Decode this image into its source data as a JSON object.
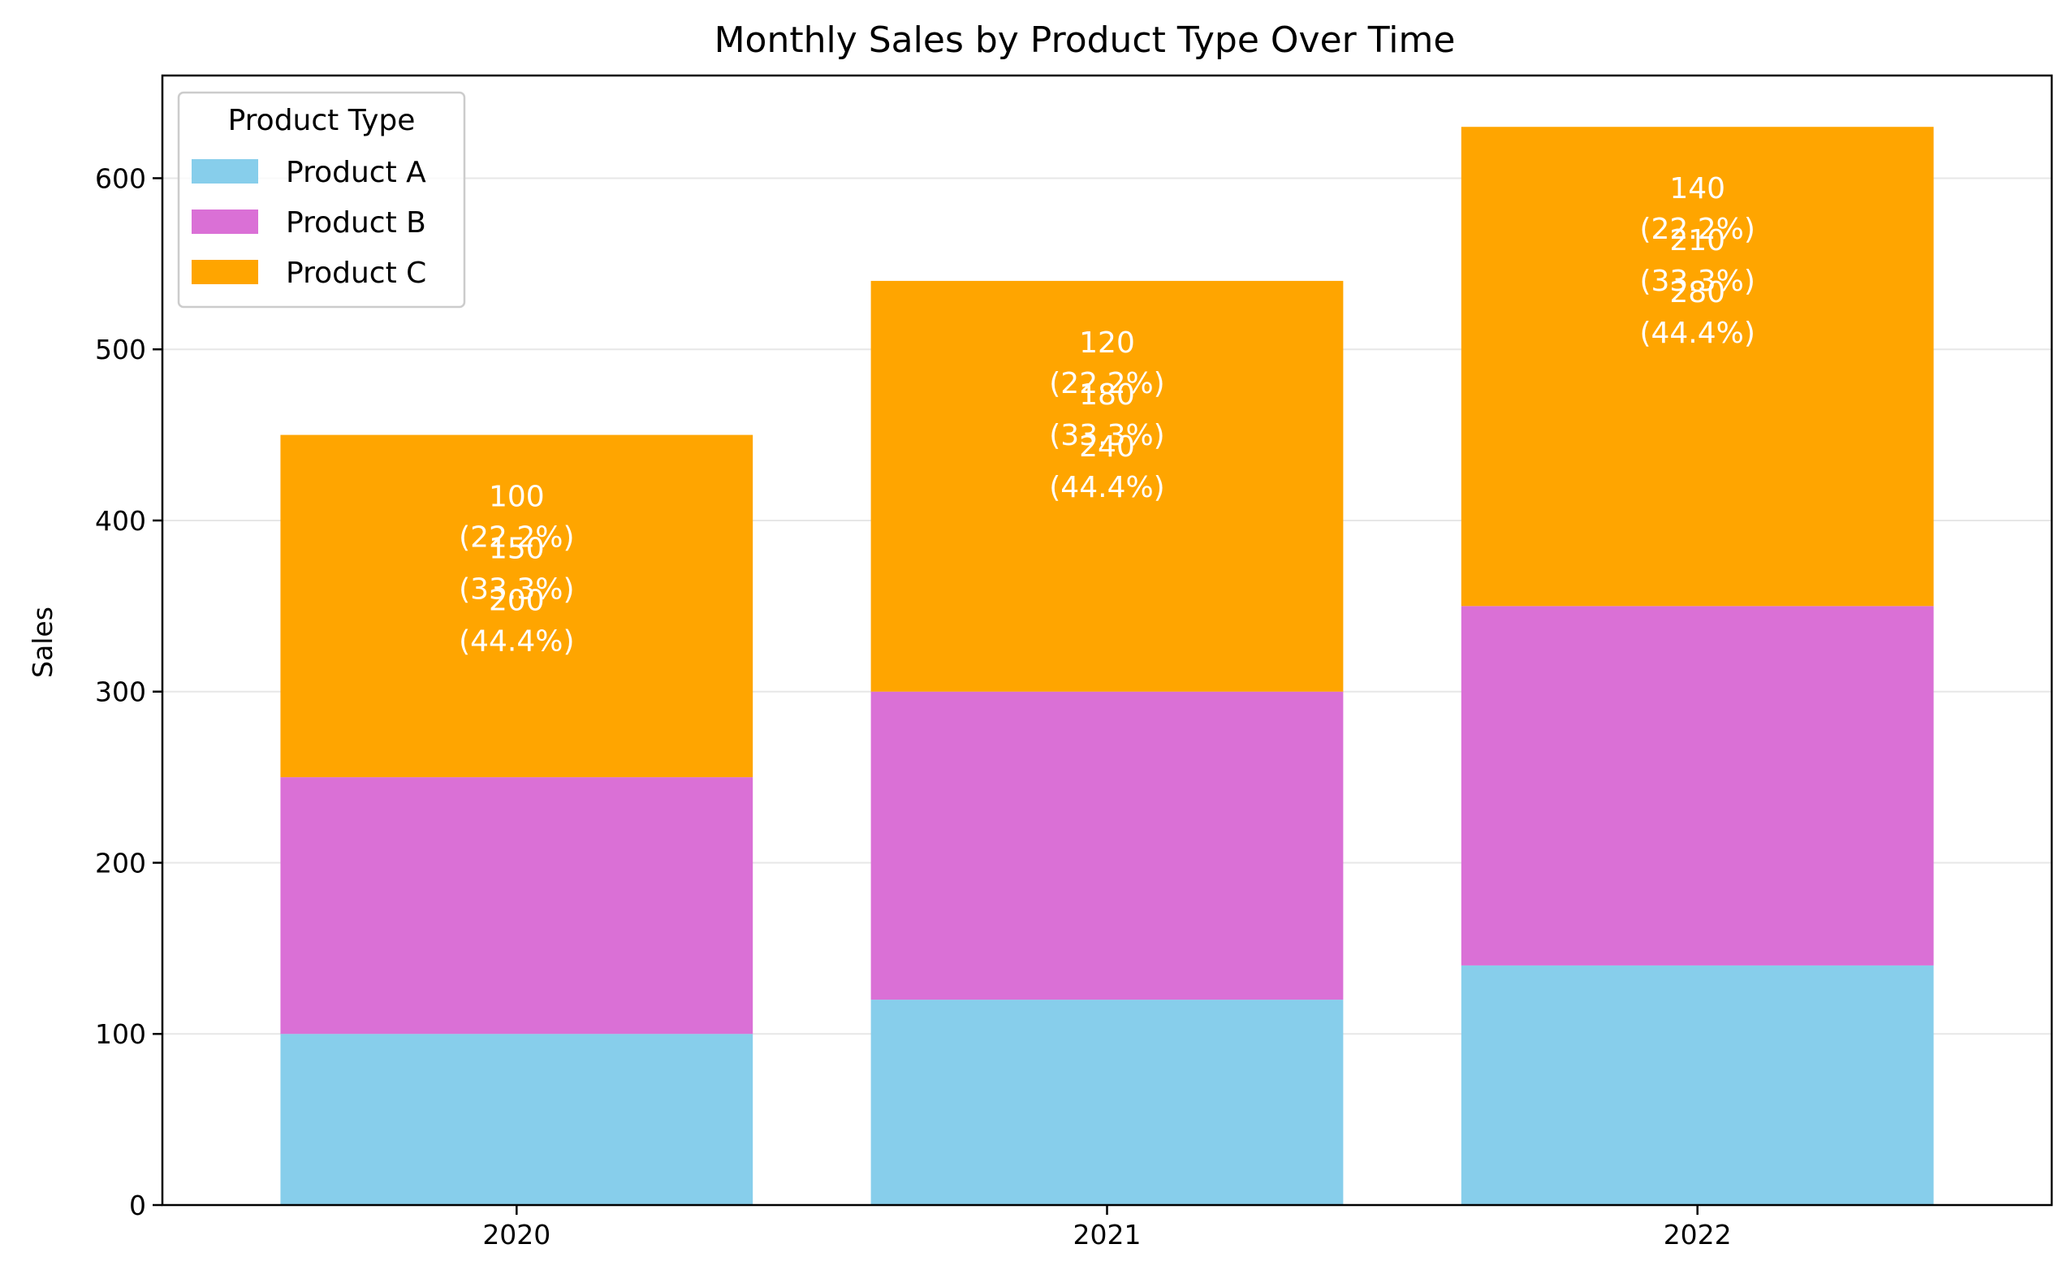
{
  "chart_data": {
    "type": "bar",
    "stacked": true,
    "title": "Monthly Sales by Product Type Over Time",
    "xlabel": "",
    "ylabel": "Sales",
    "categories": [
      "2020",
      "2021",
      "2022"
    ],
    "ylim": [
      0,
      660
    ],
    "yticks": [
      0,
      100,
      200,
      300,
      400,
      500,
      600
    ],
    "grid": "y",
    "legend": {
      "title": "Product Type",
      "placement": "top-left"
    },
    "series": [
      {
        "name": "Product A",
        "color": "#87CEEB",
        "values": [
          100,
          120,
          140
        ]
      },
      {
        "name": "Product B",
        "color": "#DA70D6",
        "values": [
          150,
          180,
          210
        ]
      },
      {
        "name": "Product C",
        "color": "#FFA500",
        "values": [
          200,
          240,
          280
        ]
      }
    ],
    "annotations": [
      {
        "category": "2020",
        "value": "100",
        "pct": "(22.2%)"
      },
      {
        "category": "2020",
        "value": "150",
        "pct": "(33.3%)"
      },
      {
        "category": "2020",
        "value": "200",
        "pct": "(44.4%)"
      },
      {
        "category": "2021",
        "value": "120",
        "pct": "(22.2%)"
      },
      {
        "category": "2021",
        "value": "180",
        "pct": "(33.3%)"
      },
      {
        "category": "2021",
        "value": "240",
        "pct": "(44.4%)"
      },
      {
        "category": "2022",
        "value": "140",
        "pct": "(22.2%)"
      },
      {
        "category": "2022",
        "value": "210",
        "pct": "(33.3%)"
      },
      {
        "category": "2022",
        "value": "280",
        "pct": "(44.4%)"
      }
    ]
  }
}
